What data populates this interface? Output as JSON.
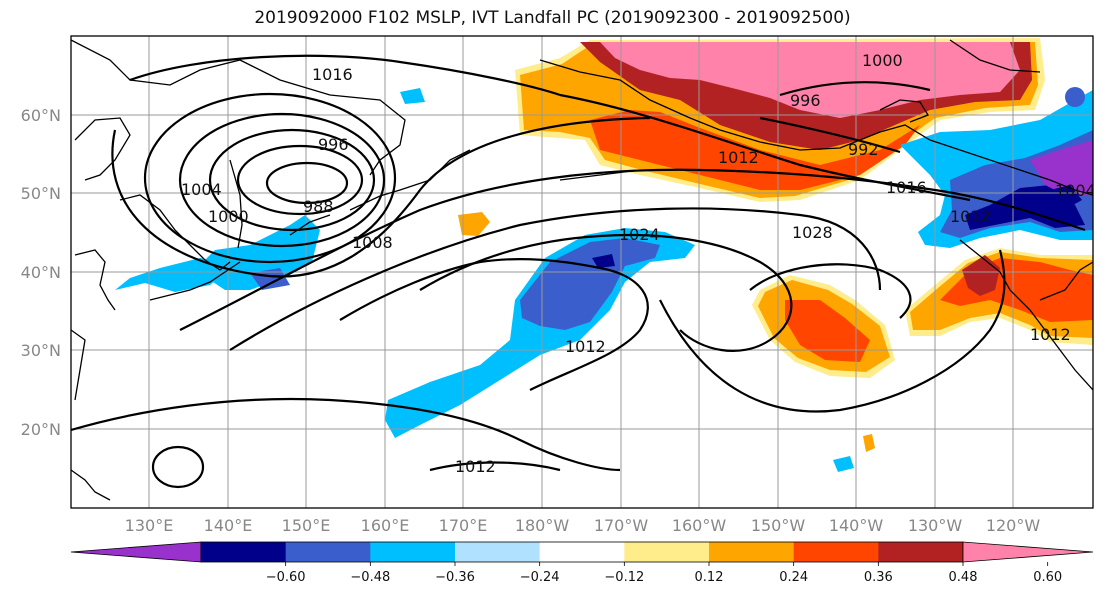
{
  "title": "2019092000 F102 MSLP, IVT Landfall PC (2019092300 - 2019092500)",
  "lat_labels": [
    "60°N",
    "50°N",
    "40°N",
    "30°N",
    "20°N"
  ],
  "lon_labels": [
    "130°E",
    "140°E",
    "150°E",
    "160°E",
    "170°E",
    "180°W",
    "170°W",
    "160°W",
    "150°W",
    "140°W",
    "130°W",
    "120°W"
  ],
  "isobar_labels": [
    "1016",
    "996",
    "1004",
    "1000",
    "988",
    "1008",
    "1024",
    "1012",
    "1028",
    "1000",
    "996",
    "992",
    "1012",
    "1016",
    "1004",
    "1012",
    "1012",
    "1012"
  ],
  "colorbar": {
    "tick_labels": [
      "−0.60",
      "−0.48",
      "−0.36",
      "−0.24",
      "−0.12",
      "0.12",
      "0.24",
      "0.36",
      "0.48",
      "0.60"
    ],
    "colors": [
      "#9932cc",
      "#00008b",
      "#3a5fcd",
      "#00bfff",
      "#b0e2ff",
      "#ffffff",
      "#ffec8b",
      "#ffa500",
      "#ff4500",
      "#b22222",
      "#ff82ab"
    ]
  },
  "colors": {
    "neg_light": "#b0e2ff",
    "neg_cyan": "#00bfff",
    "neg_blue": "#3a5fcd",
    "neg_navy": "#00008b",
    "neg_purple": "#9932cc",
    "pos_yellow": "#ffec8b",
    "pos_orange": "#ffa500",
    "pos_red": "#ff4500",
    "pos_darkred": "#b22222",
    "pos_pink": "#ff82ab"
  }
}
